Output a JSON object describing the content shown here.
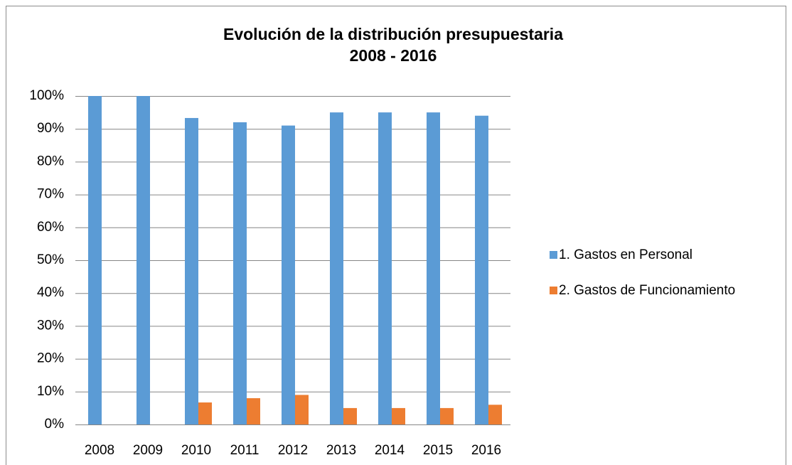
{
  "chart_data": {
    "type": "bar",
    "title": [
      "Evolución de la distribución presupuestaria",
      "2008 - 2016"
    ],
    "categories": [
      "2008",
      "2009",
      "2010",
      "2011",
      "2012",
      "2013",
      "2014",
      "2015",
      "2016"
    ],
    "series": [
      {
        "name": "1. Gastos en Personal",
        "color": "#5b9bd5",
        "values": [
          100,
          100,
          93.3,
          92,
          91,
          95,
          95,
          95,
          94
        ]
      },
      {
        "name": "2. Gastos de Funcionamiento",
        "color": "#ed7d31",
        "values": [
          0,
          0,
          6.7,
          8,
          9,
          5,
          5,
          5,
          6
        ]
      }
    ],
    "ylim": [
      0,
      100
    ],
    "yticks": [
      {
        "value": 0,
        "label": "0%"
      },
      {
        "value": 10,
        "label": "10%"
      },
      {
        "value": 20,
        "label": "20%"
      },
      {
        "value": 30,
        "label": "30%"
      },
      {
        "value": 40,
        "label": "40%"
      },
      {
        "value": 50,
        "label": "50%"
      },
      {
        "value": 60,
        "label": "60%"
      },
      {
        "value": 70,
        "label": "70%"
      },
      {
        "value": 80,
        "label": "80%"
      },
      {
        "value": 90,
        "label": "90%"
      },
      {
        "value": 100,
        "label": "100%"
      }
    ],
    "grid": true,
    "legend": "right"
  }
}
